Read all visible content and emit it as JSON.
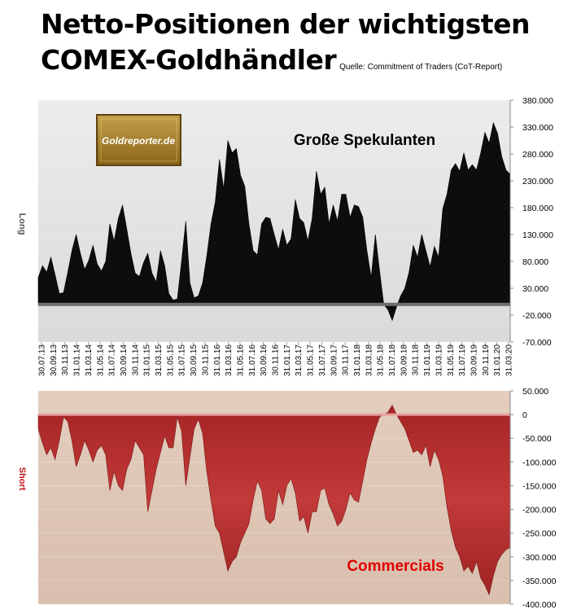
{
  "header": {
    "title_line1": "Netto-Positionen der wichtigsten",
    "title_line2": "COMEX-Goldhändler",
    "source": "Quelle: Commitment of Traders (CoT-Report)"
  },
  "logo": {
    "text": "Goldreporter.de"
  },
  "colors": {
    "long_fill": "#0d0d0d",
    "short_fill": "#b83232",
    "top_bg": "#e2e2e2",
    "bottom_bg": "#dcc2af",
    "commercials_label": "#e00000"
  },
  "chart_data": [
    {
      "type": "area",
      "title": "Große Spekulanten",
      "ylabel": "Long",
      "ylim": [
        -70000,
        380000
      ],
      "y_ticks": [
        "380.000",
        "330.000",
        "280.000",
        "230.000",
        "180.000",
        "130.000",
        "80.000",
        "30.000",
        "-20.000",
        "-70.000"
      ],
      "x_ticks": [
        "30.07.13",
        "30.09.13",
        "30.11.13",
        "31.01.14",
        "31.03.14",
        "31.05.14",
        "31.07.14",
        "30.09.14",
        "30.11.14",
        "31.01.15",
        "31.03.15",
        "31.05.15",
        "31.07.15",
        "30.09.15",
        "30.11.15",
        "31.01.16",
        "31.03.16",
        "31.05.16",
        "31.07.16",
        "30.09.16",
        "30.11.16",
        "31.01.17",
        "31.03.17",
        "31.05.17",
        "31.07.17",
        "30.09.17",
        "30.11.17",
        "31.01.18",
        "31.03.18",
        "31.05.18",
        "31.07.18",
        "30.09.18",
        "30.11.18",
        "31.01.19",
        "31.03.19",
        "31.05.19",
        "31.07.19",
        "30.09.19",
        "30.11.19",
        "31.01.20",
        "31.03.20"
      ],
      "series": [
        {
          "values": [
            50000,
            72000,
            60000,
            88000,
            55000,
            20000,
            22000,
            60000,
            100000,
            130000,
            95000,
            65000,
            82000,
            110000,
            75000,
            62000,
            80000,
            150000,
            118000,
            160000,
            185000,
            140000,
            95000,
            58000,
            52000,
            78000,
            95000,
            58000,
            42000,
            100000,
            72000,
            20000,
            8000,
            10000,
            80000,
            155000,
            40000,
            12000,
            16000,
            40000,
            90000,
            150000,
            190000,
            270000,
            215000,
            305000,
            282000,
            290000,
            240000,
            220000,
            150000,
            100000,
            92000,
            150000,
            162000,
            160000,
            130000,
            102000,
            140000,
            110000,
            122000,
            195000,
            160000,
            152000,
            118000,
            160000,
            248000,
            205000,
            218000,
            150000,
            185000,
            155000,
            205000,
            205000,
            162000,
            185000,
            182000,
            162000,
            100000,
            50000,
            130000,
            62000,
            0,
            -10000,
            -30000,
            -5000,
            16000,
            30000,
            60000,
            110000,
            88000,
            130000,
            100000,
            70000,
            108000,
            88000,
            178000,
            205000,
            250000,
            262000,
            248000,
            282000,
            250000,
            260000,
            250000,
            282000,
            320000,
            300000,
            338000,
            318000,
            275000,
            250000,
            242000
          ]
        }
      ]
    },
    {
      "type": "area",
      "title": "Commercials",
      "ylabel": "Short",
      "ylim": [
        -400000,
        50000
      ],
      "y_ticks": [
        "50.000",
        "0",
        "-50.000",
        "-100.000",
        "-150.000",
        "-200.000",
        "-250.000",
        "-300.000",
        "-350.000",
        "-400.000"
      ],
      "series": [
        {
          "values": [
            -30000,
            -60000,
            -85000,
            -70000,
            -95000,
            -55000,
            -5000,
            -15000,
            -55000,
            -110000,
            -85000,
            -55000,
            -75000,
            -100000,
            -75000,
            -65000,
            -85000,
            -160000,
            -120000,
            -150000,
            -160000,
            -115000,
            -95000,
            -55000,
            -70000,
            -85000,
            -205000,
            -160000,
            -115000,
            -80000,
            -45000,
            -70000,
            -70000,
            -5000,
            -35000,
            -150000,
            -90000,
            -30000,
            -10000,
            -40000,
            -120000,
            -180000,
            -235000,
            -250000,
            -290000,
            -330000,
            -310000,
            -300000,
            -270000,
            -250000,
            -230000,
            -180000,
            -140000,
            -160000,
            -220000,
            -230000,
            -220000,
            -160000,
            -190000,
            -150000,
            -135000,
            -165000,
            -225000,
            -215000,
            -250000,
            -205000,
            -205000,
            -160000,
            -155000,
            -190000,
            -210000,
            -235000,
            -225000,
            -200000,
            -165000,
            -180000,
            -185000,
            -140000,
            -95000,
            -60000,
            -30000,
            -5000,
            0,
            5000,
            20000,
            0,
            -15000,
            -30000,
            -55000,
            -80000,
            -75000,
            -85000,
            -65000,
            -110000,
            -75000,
            -95000,
            -130000,
            -195000,
            -245000,
            -280000,
            -300000,
            -330000,
            -320000,
            -335000,
            -310000,
            -345000,
            -360000,
            -380000,
            -340000,
            -310000,
            -295000,
            -285000,
            -280000
          ]
        }
      ]
    }
  ]
}
